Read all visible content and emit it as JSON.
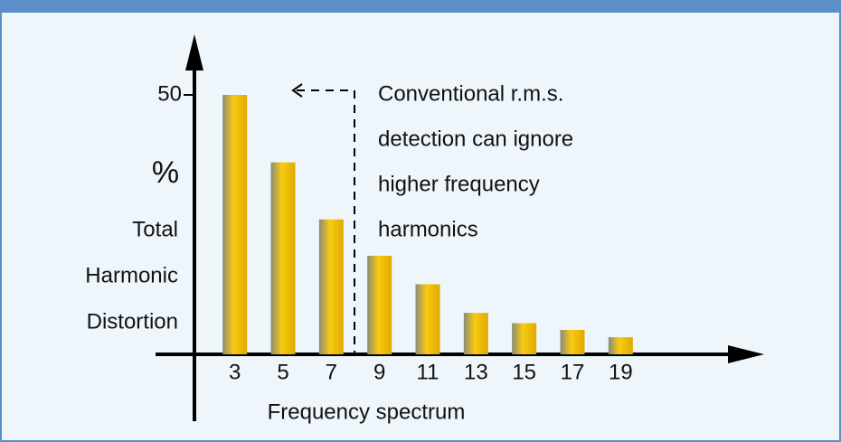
{
  "chart_data": {
    "type": "bar",
    "categories": [
      "3",
      "5",
      "7",
      "9",
      "11",
      "13",
      "15",
      "17",
      "19"
    ],
    "values": [
      50,
      37,
      26,
      19,
      13.5,
      8,
      6,
      4.7,
      3.3
    ],
    "color": "#f5c400",
    "ylim": [
      0,
      60
    ],
    "yticks": [
      50
    ],
    "y_unit": "%",
    "y_label_lines": [
      "Total",
      "Harmonic",
      "Distortion"
    ],
    "x_label": "Frequency spectrum",
    "annotation_lines": [
      "Conventional r.m.s.",
      "detection can ignore",
      "higher frequency",
      "harmonics"
    ]
  }
}
